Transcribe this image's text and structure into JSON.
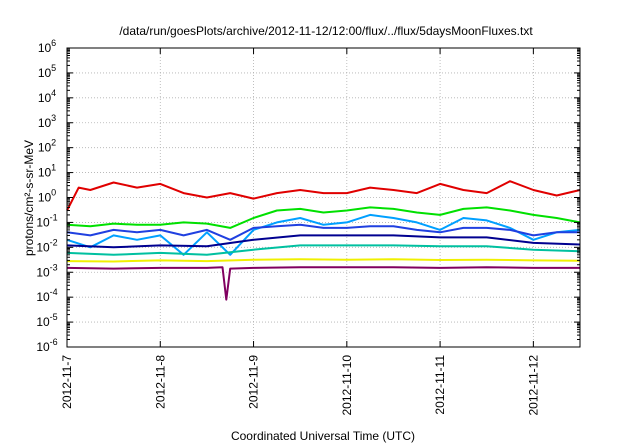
{
  "chart_data": {
    "type": "line",
    "title": "/data/run/goesPlots/archive/2012-11-12/12:00/flux/../flux/5daysMoonFluxes.txt",
    "xlabel": "Coordinated Universal Time (UTC)",
    "ylabel": "protons/cm²-s-sr-MeV",
    "y_scale": "log",
    "ylim": [
      1e-06,
      1000000.0
    ],
    "xlim": [
      "2012-11-07",
      "2012-11-12 12:00"
    ],
    "grid": true,
    "x_ticks": [
      "2012-11-7",
      "2012-11-8",
      "2012-11-9",
      "2012-11-10",
      "2012-11-11",
      "2012-11-12"
    ],
    "y_ticks": [
      {
        "base": "10",
        "exp": "-6"
      },
      {
        "base": "10",
        "exp": "-5"
      },
      {
        "base": "10",
        "exp": "-4"
      },
      {
        "base": "10",
        "exp": "-3"
      },
      {
        "base": "10",
        "exp": "-2"
      },
      {
        "base": "10",
        "exp": "-1"
      },
      {
        "base": "10",
        "exp": "0"
      },
      {
        "base": "10",
        "exp": "1"
      },
      {
        "base": "10",
        "exp": "2"
      },
      {
        "base": "10",
        "exp": "3"
      },
      {
        "base": "10",
        "exp": "4"
      },
      {
        "base": "10",
        "exp": "5"
      },
      {
        "base": "10",
        "exp": "6"
      }
    ],
    "series": [
      {
        "color": "#e00000",
        "x": [
          "2012-11-07 00:00",
          "2012-11-07 03:00",
          "2012-11-07 06:00",
          "2012-11-07 12:00",
          "2012-11-07 18:00",
          "2012-11-08 00:00",
          "2012-11-08 06:00",
          "2012-11-08 12:00",
          "2012-11-08 18:00",
          "2012-11-09 00:00",
          "2012-11-09 06:00",
          "2012-11-09 12:00",
          "2012-11-09 18:00",
          "2012-11-10 00:00",
          "2012-11-10 06:00",
          "2012-11-10 12:00",
          "2012-11-10 18:00",
          "2012-11-11 00:00",
          "2012-11-11 06:00",
          "2012-11-11 12:00",
          "2012-11-11 18:00",
          "2012-11-12 00:00",
          "2012-11-12 06:00",
          "2012-11-12 12:00"
        ],
        "values": [
          0.3,
          2.5,
          2.0,
          4.0,
          2.5,
          3.5,
          1.5,
          1.0,
          1.5,
          0.9,
          1.5,
          2.0,
          1.5,
          1.5,
          2.5,
          2.0,
          1.5,
          3.5,
          2.0,
          1.5,
          4.5,
          2.0,
          1.2,
          2.0
        ]
      },
      {
        "color": "#00e000",
        "x": [
          "2012-11-07 00:00",
          "2012-11-07 06:00",
          "2012-11-07 12:00",
          "2012-11-07 18:00",
          "2012-11-08 00:00",
          "2012-11-08 06:00",
          "2012-11-08 12:00",
          "2012-11-08 18:00",
          "2012-11-09 00:00",
          "2012-11-09 06:00",
          "2012-11-09 12:00",
          "2012-11-09 18:00",
          "2012-11-10 00:00",
          "2012-11-10 06:00",
          "2012-11-10 12:00",
          "2012-11-10 18:00",
          "2012-11-11 00:00",
          "2012-11-11 06:00",
          "2012-11-11 12:00",
          "2012-11-11 18:00",
          "2012-11-12 00:00",
          "2012-11-12 06:00",
          "2012-11-12 12:00"
        ],
        "values": [
          0.08,
          0.07,
          0.09,
          0.08,
          0.08,
          0.1,
          0.09,
          0.06,
          0.15,
          0.3,
          0.35,
          0.25,
          0.3,
          0.4,
          0.35,
          0.25,
          0.2,
          0.35,
          0.4,
          0.3,
          0.2,
          0.15,
          0.1
        ]
      },
      {
        "color": "#00a0ff",
        "x": [
          "2012-11-07 00:00",
          "2012-11-07 06:00",
          "2012-11-07 12:00",
          "2012-11-07 18:00",
          "2012-11-08 00:00",
          "2012-11-08 06:00",
          "2012-11-08 12:00",
          "2012-11-08 18:00",
          "2012-11-09 00:00",
          "2012-11-09 06:00",
          "2012-11-09 12:00",
          "2012-11-09 18:00",
          "2012-11-10 00:00",
          "2012-11-10 06:00",
          "2012-11-10 12:00",
          "2012-11-10 18:00",
          "2012-11-11 00:00",
          "2012-11-11 06:00",
          "2012-11-11 12:00",
          "2012-11-11 18:00",
          "2012-11-12 00:00",
          "2012-11-12 06:00",
          "2012-11-12 12:00"
        ],
        "values": [
          0.02,
          0.01,
          0.03,
          0.02,
          0.03,
          0.005,
          0.04,
          0.005,
          0.05,
          0.1,
          0.15,
          0.08,
          0.1,
          0.2,
          0.15,
          0.1,
          0.05,
          0.15,
          0.12,
          0.06,
          0.02,
          0.04,
          0.05
        ]
      },
      {
        "color": "#2040e0",
        "x": [
          "2012-11-07 00:00",
          "2012-11-07 06:00",
          "2012-11-07 12:00",
          "2012-11-07 18:00",
          "2012-11-08 00:00",
          "2012-11-08 06:00",
          "2012-11-08 12:00",
          "2012-11-08 18:00",
          "2012-11-09 00:00",
          "2012-11-09 06:00",
          "2012-11-09 12:00",
          "2012-11-09 18:00",
          "2012-11-10 00:00",
          "2012-11-10 06:00",
          "2012-11-10 12:00",
          "2012-11-10 18:00",
          "2012-11-11 00:00",
          "2012-11-11 06:00",
          "2012-11-11 12:00",
          "2012-11-11 18:00",
          "2012-11-12 00:00",
          "2012-11-12 06:00",
          "2012-11-12 12:00"
        ],
        "values": [
          0.04,
          0.03,
          0.05,
          0.04,
          0.05,
          0.03,
          0.05,
          0.02,
          0.06,
          0.07,
          0.08,
          0.06,
          0.06,
          0.07,
          0.07,
          0.05,
          0.04,
          0.06,
          0.06,
          0.05,
          0.03,
          0.04,
          0.04
        ]
      },
      {
        "color": "#000090",
        "x": [
          "2012-11-07 00:00",
          "2012-11-07 12:00",
          "2012-11-08 00:00",
          "2012-11-08 12:00",
          "2012-11-09 00:00",
          "2012-11-09 12:00",
          "2012-11-10 00:00",
          "2012-11-10 12:00",
          "2012-11-11 00:00",
          "2012-11-11 12:00",
          "2012-11-12 00:00",
          "2012-11-12 12:00"
        ],
        "values": [
          0.012,
          0.01,
          0.012,
          0.011,
          0.02,
          0.03,
          0.03,
          0.03,
          0.025,
          0.025,
          0.015,
          0.013
        ]
      },
      {
        "color": "#00c0a0",
        "x": [
          "2012-11-07 00:00",
          "2012-11-07 12:00",
          "2012-11-08 00:00",
          "2012-11-08 12:00",
          "2012-11-09 00:00",
          "2012-11-09 12:00",
          "2012-11-10 00:00",
          "2012-11-10 12:00",
          "2012-11-11 00:00",
          "2012-11-11 12:00",
          "2012-11-12 00:00",
          "2012-11-12 12:00"
        ],
        "values": [
          0.006,
          0.005,
          0.006,
          0.005,
          0.008,
          0.012,
          0.012,
          0.012,
          0.011,
          0.011,
          0.008,
          0.007
        ]
      },
      {
        "color": "#f0f000",
        "x": [
          "2012-11-07 00:00",
          "2012-11-07 12:00",
          "2012-11-08 00:00",
          "2012-11-08 12:00",
          "2012-11-09 00:00",
          "2012-11-09 12:00",
          "2012-11-10 00:00",
          "2012-11-10 12:00",
          "2012-11-11 00:00",
          "2012-11-11 12:00",
          "2012-11-12 00:00",
          "2012-11-12 12:00"
        ],
        "values": [
          0.0028,
          0.0027,
          0.003,
          0.0028,
          0.0032,
          0.0033,
          0.0032,
          0.0033,
          0.0031,
          0.0032,
          0.003,
          0.0029
        ]
      },
      {
        "color": "#800060",
        "x": [
          "2012-11-07 00:00",
          "2012-11-07 12:00",
          "2012-11-08 00:00",
          "2012-11-08 12:00",
          "2012-11-08 16:00",
          "2012-11-08 17:00",
          "2012-11-08 18:00",
          "2012-11-09 00:00",
          "2012-11-09 12:00",
          "2012-11-10 00:00",
          "2012-11-10 12:00",
          "2012-11-11 00:00",
          "2012-11-11 12:00",
          "2012-11-12 00:00",
          "2012-11-12 12:00"
        ],
        "values": [
          0.0015,
          0.0014,
          0.0015,
          0.0015,
          0.0016,
          8e-05,
          0.0014,
          0.0015,
          0.0016,
          0.0016,
          0.0016,
          0.0015,
          0.0016,
          0.0015,
          0.0015
        ]
      }
    ]
  }
}
